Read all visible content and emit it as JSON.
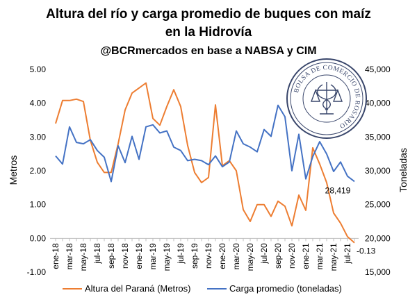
{
  "chart_data": {
    "type": "line",
    "title": "Altura del río y carga promedio de buques con maíz",
    "title_line2": "en la Hidrovía",
    "subtitle": "@BCRmercados en base a NABSA y CIM",
    "ylabel_left": "Metros",
    "ylabel_right": "Toneladas",
    "ylim_left": [
      -1.0,
      5.0
    ],
    "yticks_left": [
      "5.00",
      "4.00",
      "3.00",
      "2.00",
      "1.00",
      "0.00",
      "-1.00"
    ],
    "ylim_right": [
      15000,
      45000
    ],
    "yticks_right": [
      "45,000",
      "40,000",
      "35,000",
      "30,000",
      "25,000",
      "20,000",
      "15,000"
    ],
    "grid": false,
    "legend_position": "bottom",
    "x": [
      "ene-18",
      "feb-18",
      "mar-18",
      "abr-18",
      "may-18",
      "jun-18",
      "jul-18",
      "ago-18",
      "sep-18",
      "oct-18",
      "nov-18",
      "dic-18",
      "ene-19",
      "feb-19",
      "mar-19",
      "abr-19",
      "may-19",
      "jun-19",
      "jul-19",
      "ago-19",
      "sep-19",
      "oct-19",
      "nov-19",
      "dic-19",
      "ene-20",
      "feb-20",
      "mar-20",
      "abr-20",
      "may-20",
      "jun-20",
      "jul-20",
      "ago-20",
      "sep-20",
      "oct-20",
      "nov-20",
      "dic-20",
      "ene-21",
      "feb-21",
      "mar-21",
      "abr-21",
      "may-21",
      "jun-21",
      "jul-21",
      "ago-21"
    ],
    "xtick_labels": [
      "ene-18",
      "mar-18",
      "may-18",
      "jul-18",
      "sep-18",
      "nov-18",
      "ene-19",
      "mar-19",
      "may-19",
      "jul-19",
      "sep-19",
      "nov-19",
      "ene-20",
      "mar-20",
      "may-20",
      "jul-20",
      "sep-20",
      "nov-20",
      "ene-21",
      "mar-21",
      "may-21",
      "jul-21"
    ],
    "series": [
      {
        "name": "Altura del Paraná (Metros)",
        "axis": "left",
        "color": "#ed7d31",
        "values": [
          3.4,
          4.08,
          4.08,
          4.12,
          4.05,
          2.9,
          2.25,
          1.95,
          1.95,
          2.8,
          3.8,
          4.3,
          4.45,
          4.6,
          3.55,
          3.35,
          3.9,
          4.4,
          3.9,
          2.75,
          1.95,
          1.65,
          1.8,
          3.95,
          2.15,
          2.3,
          2.0,
          0.85,
          0.5,
          1.0,
          1.0,
          0.65,
          1.1,
          0.95,
          0.37,
          1.28,
          0.83,
          2.68,
          2.2,
          1.65,
          0.75,
          0.45,
          0.05,
          -0.13
        ]
      },
      {
        "name": "Carga promedio (toneladas)",
        "axis": "right",
        "color": "#4472c4",
        "values": [
          32200,
          31000,
          36500,
          34200,
          34000,
          34600,
          33000,
          32000,
          28400,
          33700,
          31200,
          35100,
          31700,
          36500,
          36800,
          35600,
          35900,
          33500,
          33000,
          31500,
          31700,
          31500,
          30900,
          32200,
          30600,
          31300,
          35900,
          34000,
          33500,
          32800,
          36100,
          35100,
          39700,
          38000,
          30000,
          35400,
          28800,
          32100,
          34300,
          32500,
          29900,
          31300,
          29200,
          28419
        ]
      }
    ],
    "annotations": [
      {
        "series": 0,
        "index": 43,
        "text": "-0.13"
      },
      {
        "series": 1,
        "index": 43,
        "text": "28,419"
      }
    ],
    "seal": {
      "text": "BOLSA DE COMERCIO DE ROSARIO",
      "colors": {
        "ring": "#39466b",
        "ink": "#39466b"
      }
    }
  }
}
